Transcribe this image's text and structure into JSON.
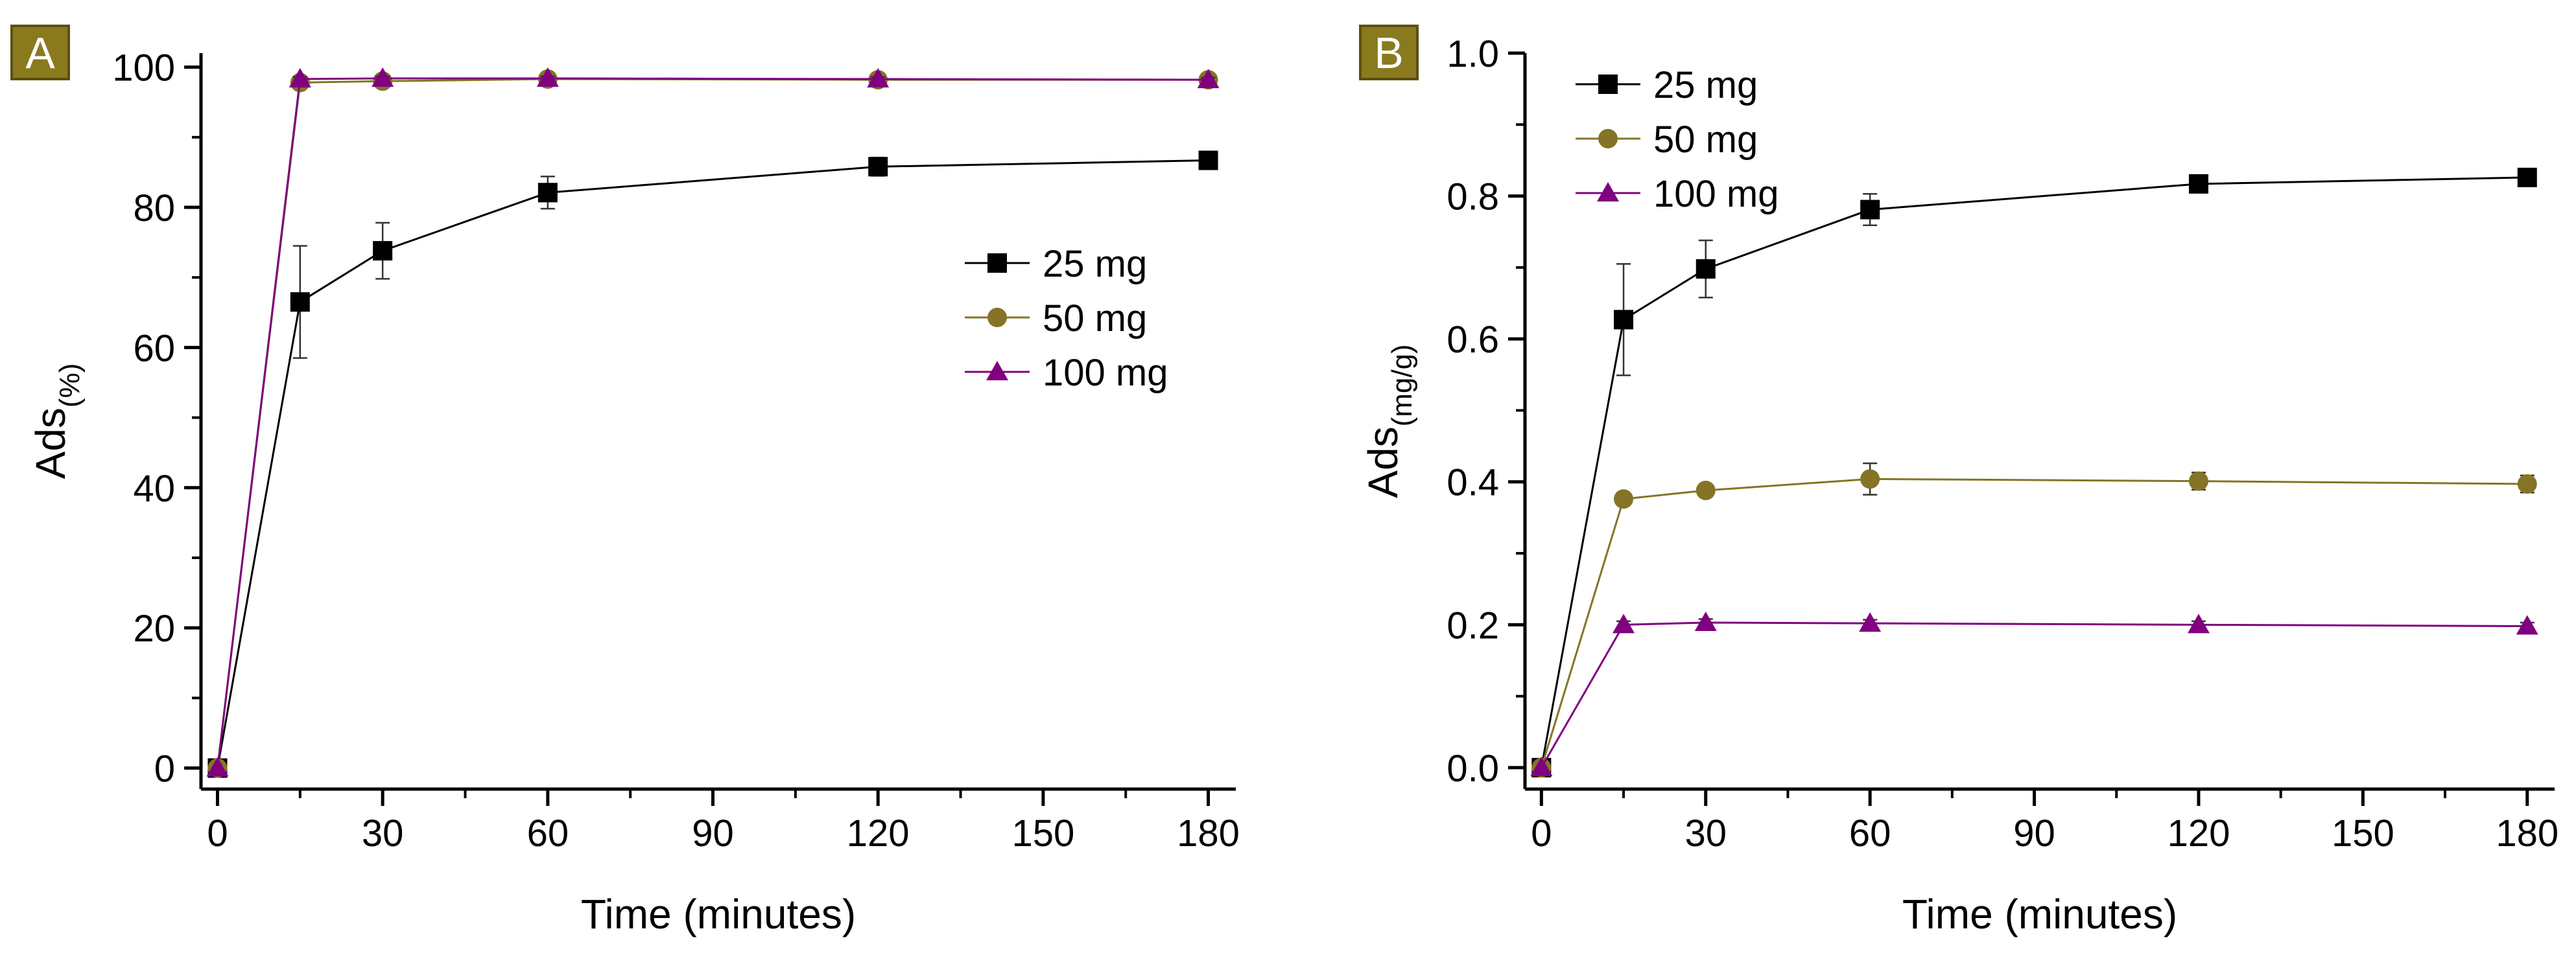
{
  "colors": {
    "series_25": "#000000",
    "series_50": "#857425",
    "series_100": "#800080",
    "badge_bg": "#8a7a1e",
    "badge_text": "#ffffff",
    "axis": "#000000"
  },
  "chart_data": [
    {
      "type": "line",
      "panel_label": "A",
      "xlabel": "Time (minutes)",
      "ylabel_main": "Ads",
      "ylabel_sub": "(%)",
      "xlim": [
        -3,
        185
      ],
      "ylim": [
        -3,
        102
      ],
      "x_ticks": [
        0,
        30,
        60,
        90,
        120,
        150,
        180
      ],
      "x_tick_labels": [
        "0",
        "30",
        "60",
        "90",
        "120",
        "150",
        "180"
      ],
      "y_ticks": [
        0,
        20,
        40,
        60,
        80,
        100
      ],
      "y_tick_labels": [
        "0",
        "20",
        "40",
        "60",
        "80",
        "100"
      ],
      "legend_position": "center-right",
      "x": [
        0,
        15,
        30,
        60,
        120,
        180
      ],
      "series": [
        {
          "name": "25 mg",
          "marker": "square",
          "color_key": "series_25",
          "values": [
            0,
            66.5,
            73.8,
            82.1,
            85.8,
            86.7
          ],
          "errors": [
            0,
            8.0,
            4.0,
            2.3,
            1.3,
            0.5
          ]
        },
        {
          "name": "50 mg",
          "marker": "circle",
          "color_key": "series_50",
          "values": [
            0,
            97.8,
            98.0,
            98.3,
            98.2,
            98.2
          ],
          "errors": [
            0,
            0.3,
            0.3,
            0.3,
            0.3,
            0.3
          ]
        },
        {
          "name": "100 mg",
          "marker": "triangle",
          "color_key": "series_100",
          "values": [
            0,
            98.3,
            98.4,
            98.4,
            98.3,
            98.2
          ],
          "errors": [
            0,
            0.3,
            0.3,
            0.3,
            0.3,
            0.3
          ]
        }
      ]
    },
    {
      "type": "line",
      "panel_label": "B",
      "xlabel": "Time (minutes)",
      "ylabel_main": "Ads",
      "ylabel_sub": "(mg/g)",
      "xlim": [
        -3,
        185
      ],
      "ylim": [
        -0.03,
        1.0
      ],
      "x_ticks": [
        0,
        30,
        60,
        90,
        120,
        150,
        180
      ],
      "x_tick_labels": [
        "0",
        "30",
        "60",
        "90",
        "120",
        "150",
        "180"
      ],
      "y_ticks": [
        0,
        0.2,
        0.4,
        0.6,
        0.8,
        1.0
      ],
      "y_tick_labels": [
        "0.0",
        "0.2",
        "0.4",
        "0.6",
        "0.8",
        "1.0"
      ],
      "legend_position": "top-left",
      "x": [
        0,
        15,
        30,
        60,
        120,
        180
      ],
      "series": [
        {
          "name": "25 mg",
          "marker": "square",
          "color_key": "series_25",
          "values": [
            0,
            0.627,
            0.698,
            0.781,
            0.817,
            0.826
          ],
          "errors": [
            0,
            0.078,
            0.04,
            0.022,
            0.012,
            0.005
          ]
        },
        {
          "name": "50 mg",
          "marker": "circle",
          "color_key": "series_50",
          "values": [
            0,
            0.376,
            0.388,
            0.404,
            0.401,
            0.397
          ],
          "errors": [
            0,
            0.006,
            0.006,
            0.022,
            0.012,
            0.012
          ]
        },
        {
          "name": "100 mg",
          "marker": "triangle",
          "color_key": "series_100",
          "values": [
            0,
            0.2,
            0.203,
            0.202,
            0.2,
            0.198
          ],
          "errors": [
            0,
            0.005,
            0.005,
            0.005,
            0.005,
            0.005
          ]
        }
      ]
    }
  ]
}
